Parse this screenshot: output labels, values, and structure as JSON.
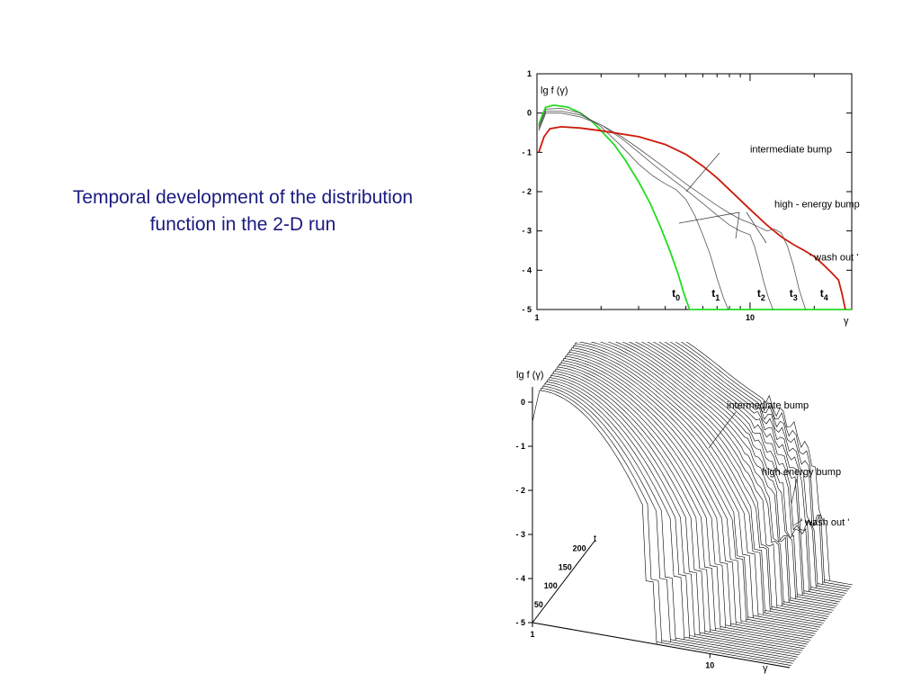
{
  "slide": {
    "title_line1": "Temporal development of the distribution",
    "title_line2": "function in the 2-D run"
  },
  "chart_data": [
    {
      "type": "line",
      "title": "",
      "ylabel": "lg f (γ)",
      "xlabel": "γ",
      "x_scale": "log",
      "xlim": [
        1,
        30
      ],
      "ylim": [
        -5,
        1
      ],
      "x_ticks": [
        "1",
        "10"
      ],
      "y_ticks": [
        "1",
        "0",
        "- 1",
        "- 2",
        "- 3",
        "- 4",
        "- 5"
      ],
      "colors": {
        "t0": "#22dd22",
        "t4": "#cc1a0a",
        "intermediate": "#555555"
      },
      "series": [
        {
          "name": "t0",
          "x": [
            1.02,
            1.06,
            1.1,
            1.2,
            1.4,
            1.6,
            1.8,
            2.0,
            2.3,
            2.6,
            3.0,
            3.4,
            3.8,
            4.2,
            4.6,
            4.9,
            5.2,
            6,
            8,
            10,
            30
          ],
          "y": [
            -0.3,
            -0.05,
            0.15,
            0.2,
            0.15,
            0.0,
            -0.2,
            -0.45,
            -0.8,
            -1.2,
            -1.75,
            -2.3,
            -2.9,
            -3.5,
            -4.1,
            -4.6,
            -5,
            -5,
            -5,
            -5,
            -5
          ]
        },
        {
          "name": "t1",
          "x": [
            1.02,
            1.1,
            1.3,
            1.6,
            2.0,
            2.5,
            3.0,
            3.5,
            4.0,
            4.5,
            5.0,
            5.5,
            6.0,
            6.5,
            7.0,
            7.5,
            7.9
          ],
          "y": [
            -0.35,
            0.1,
            0.12,
            0.0,
            -0.35,
            -0.85,
            -1.3,
            -1.6,
            -1.8,
            -1.95,
            -2.2,
            -2.6,
            -3.1,
            -3.6,
            -4.2,
            -4.7,
            -5
          ]
        },
        {
          "name": "t2",
          "x": [
            1.02,
            1.1,
            1.3,
            1.6,
            2.0,
            2.5,
            3.0,
            3.5,
            4.0,
            5.0,
            6.0,
            7.0,
            8.0,
            9.0,
            10.0,
            10.5,
            11,
            11.6,
            12.2,
            12.8
          ],
          "y": [
            -0.4,
            0.05,
            0.05,
            -0.05,
            -0.3,
            -0.65,
            -1.0,
            -1.3,
            -1.55,
            -1.95,
            -2.3,
            -2.6,
            -2.85,
            -3.0,
            -3.1,
            -3.4,
            -3.8,
            -4.3,
            -4.7,
            -5
          ]
        },
        {
          "name": "t3",
          "x": [
            1.02,
            1.1,
            1.3,
            1.6,
            2.0,
            2.5,
            3.0,
            4.0,
            5.0,
            6.0,
            7.0,
            8.0,
            9.0,
            10.0,
            11.0,
            12.0,
            13.0,
            14.0,
            15.0,
            16.0,
            17.0,
            18.2
          ],
          "y": [
            -0.45,
            0.0,
            0.0,
            -0.1,
            -0.3,
            -0.6,
            -0.9,
            -1.4,
            -1.8,
            -2.1,
            -2.35,
            -2.55,
            -2.7,
            -2.8,
            -2.9,
            -3.0,
            -2.95,
            -3.05,
            -3.4,
            -3.9,
            -4.5,
            -5
          ]
        },
        {
          "name": "t4",
          "x": [
            1.02,
            1.08,
            1.15,
            1.3,
            1.6,
            2.0,
            3.0,
            4.0,
            5.0,
            6.0,
            7.0,
            8.0,
            10.0,
            12.0,
            14.0,
            16.0,
            18.0,
            20.0,
            22.0,
            24.0,
            26.0,
            27.0,
            28.0
          ],
          "y": [
            -1.0,
            -0.6,
            -0.4,
            -0.35,
            -0.38,
            -0.45,
            -0.6,
            -0.8,
            -1.05,
            -1.35,
            -1.65,
            -1.95,
            -2.45,
            -2.85,
            -3.15,
            -3.35,
            -3.5,
            -3.65,
            -3.85,
            -4.05,
            -4.25,
            -4.6,
            -5
          ]
        }
      ],
      "annotations": [
        {
          "text": "intermediate bump",
          "x": 10,
          "y": -1.0
        },
        {
          "text": "high - energy bump",
          "x": 13,
          "y": -2.4
        },
        {
          "text": "' wash out '",
          "x": 19,
          "y": -3.75
        },
        {
          "text": "t",
          "sub": "0",
          "x": 4.3,
          "y": -4.68
        },
        {
          "text": "t",
          "sub": "1",
          "x": 6.6,
          "y": -4.68
        },
        {
          "text": "t",
          "sub": "2",
          "x": 10.8,
          "y": -4.68
        },
        {
          "text": "t",
          "sub": "3",
          "x": 15.3,
          "y": -4.68
        },
        {
          "text": "t",
          "sub": "4",
          "x": 21.3,
          "y": -4.68
        }
      ]
    },
    {
      "type": "line",
      "subtype": "3d-waterfall",
      "title": "",
      "ylabel": "lg f (γ)",
      "xlabel": "γ",
      "depth_label": "t",
      "x_ticks": [
        "1",
        "10"
      ],
      "y_ticks": [
        "0",
        "- 1",
        "- 2",
        "- 3",
        "- 4",
        "- 5"
      ],
      "depth_ticks": [
        "50",
        "100",
        "150",
        "200"
      ],
      "ylim": [
        -5,
        0.6
      ],
      "t_range": [
        0,
        220
      ],
      "slices": 40,
      "annotations": [
        {
          "text": "intermediate bump"
        },
        {
          "text": "high energy bump"
        },
        {
          "text": "' wash out '"
        }
      ]
    }
  ]
}
